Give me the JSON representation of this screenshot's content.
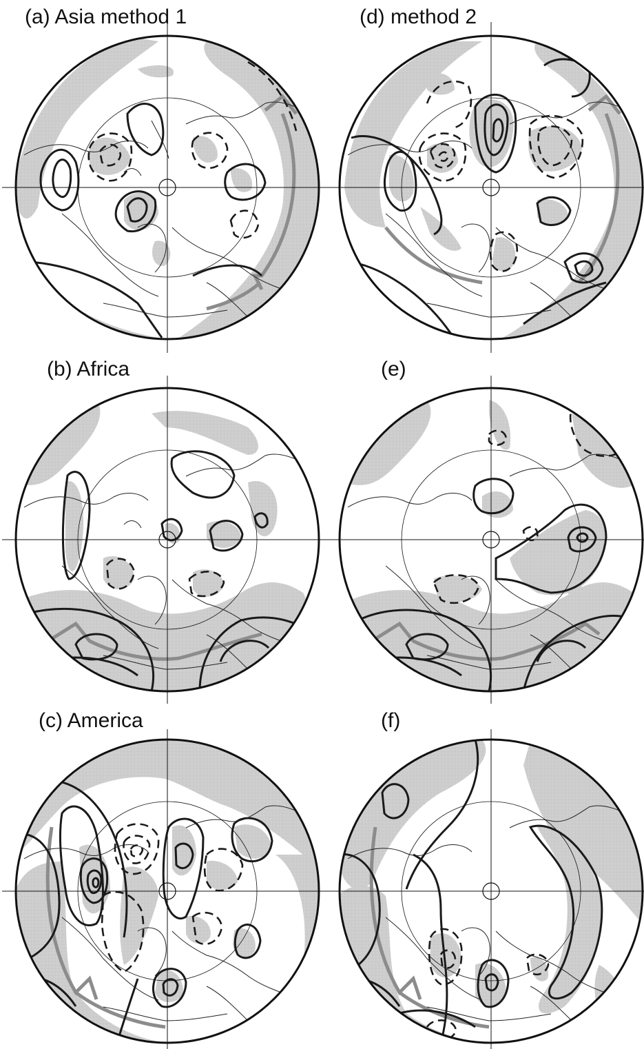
{
  "figure": {
    "panels": [
      {
        "id": "a",
        "label": "(a) Asia method 1"
      },
      {
        "id": "d",
        "label": "(d) method 2"
      },
      {
        "id": "b",
        "label": "(b) Africa"
      },
      {
        "id": "e",
        "label": "(e)"
      },
      {
        "id": "c",
        "label": "(c) America"
      },
      {
        "id": "f",
        "label": "(f)"
      }
    ],
    "projection": "north-polar-stereographic",
    "shading": "significant-regions-grey",
    "contours": {
      "positive": "solid",
      "negative": "dashed"
    },
    "colors": {
      "shade": "#cfcfcf",
      "contour": "#1a1a1a",
      "coast": "#222222",
      "jet_axis": "#8c8c8c",
      "frame": "#111111"
    }
  }
}
